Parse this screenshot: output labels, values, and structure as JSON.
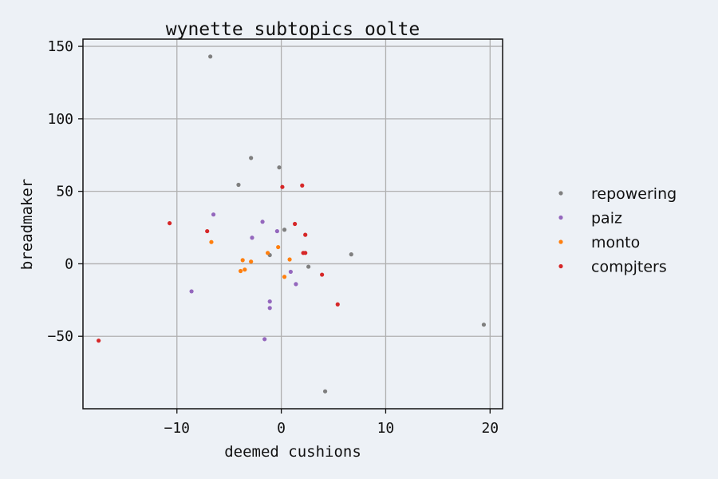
{
  "chart_data": {
    "type": "scatter",
    "title": "wynette subtopics oolte",
    "xlabel": "deemed cushions",
    "ylabel": "breadmaker",
    "xlim": [
      -19,
      21.2
    ],
    "ylim": [
      -100,
      155
    ],
    "xticks": [
      -10,
      0,
      10,
      20
    ],
    "yticks": [
      -50,
      0,
      50,
      100,
      150
    ],
    "xtick_labels": [
      "−10",
      "0",
      "10",
      "20"
    ],
    "ytick_labels": [
      "−50",
      "0",
      "50",
      "100",
      "150"
    ],
    "grid": true,
    "legend_position": "right",
    "series": [
      {
        "name": "repowering",
        "color": "#7f7f7f",
        "points": [
          [
            -6.8,
            143
          ],
          [
            -2.9,
            73
          ],
          [
            -0.2,
            66.5
          ],
          [
            -4.1,
            54.5
          ],
          [
            0.3,
            23.5
          ],
          [
            -1.1,
            6
          ],
          [
            2.6,
            -2
          ],
          [
            6.7,
            6.5
          ],
          [
            19.4,
            -42
          ],
          [
            4.2,
            -88
          ]
        ]
      },
      {
        "name": "paiz",
        "color": "#9467bd",
        "points": [
          [
            -6.5,
            34
          ],
          [
            -1.8,
            29
          ],
          [
            -2.8,
            18
          ],
          [
            -0.4,
            22.5
          ],
          [
            0.9,
            -5.5
          ],
          [
            1.4,
            -14
          ],
          [
            -1.1,
            -26
          ],
          [
            -1.1,
            -30.5
          ],
          [
            -8.6,
            -19
          ],
          [
            -1.6,
            -52
          ]
        ]
      },
      {
        "name": "monto",
        "color": "#ff7f0e",
        "points": [
          [
            -6.7,
            15
          ],
          [
            -3.7,
            2.5
          ],
          [
            -2.9,
            1.5
          ],
          [
            -3.9,
            -5
          ],
          [
            -3.5,
            -4
          ],
          [
            -1.3,
            7.5
          ],
          [
            -0.3,
            11.5
          ],
          [
            0.8,
            3
          ],
          [
            0.3,
            -9
          ]
        ]
      },
      {
        "name": "compjters",
        "color": "#d62728",
        "points": [
          [
            -10.7,
            28
          ],
          [
            -7.1,
            22.5
          ],
          [
            0.1,
            53
          ],
          [
            2.0,
            54
          ],
          [
            1.3,
            27.5
          ],
          [
            2.3,
            20
          ],
          [
            2.1,
            7.5
          ],
          [
            2.3,
            7.5
          ],
          [
            3.9,
            -7.5
          ],
          [
            5.4,
            -28
          ],
          [
            -17.5,
            -53
          ]
        ]
      }
    ]
  }
}
